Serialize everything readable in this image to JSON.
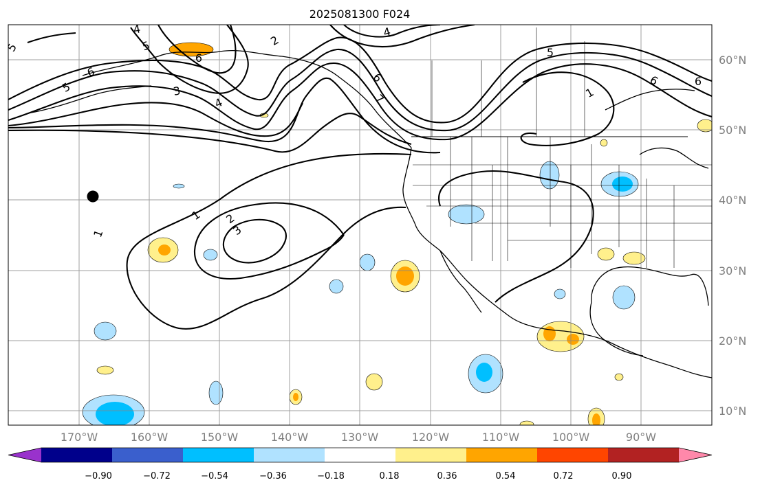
{
  "title": "2025081300 F024",
  "lon_labels": [
    "170°W",
    "160°W",
    "150°W",
    "140°W",
    "130°W",
    "120°W",
    "110°W",
    "100°W",
    "90°W"
  ],
  "lat_labels": [
    "60°N",
    "50°N",
    "40°N",
    "30°N",
    "20°N",
    "10°N"
  ],
  "contour_labels": [
    "5",
    "6",
    "5",
    "4",
    "2",
    "3",
    "4",
    "6",
    "5",
    "6",
    "4",
    "7",
    "5",
    "6",
    "6",
    "1",
    "1",
    "2",
    "3",
    "1",
    "4"
  ],
  "colorbar": {
    "tick_labels": [
      "−0.90",
      "−0.72",
      "−0.54",
      "−0.36",
      "−0.18",
      "0.18",
      "0.36",
      "0.54",
      "0.72",
      "0.90"
    ],
    "colors": [
      "#9932cc",
      "#00008b",
      "#3a5fcd",
      "#00bfff",
      "#b0e2ff",
      "#ffffff",
      "#fff08c",
      "#ffa500",
      "#ff4500",
      "#b22222",
      "#ff88aa"
    ]
  },
  "colors": {
    "positive_light": "#fff08c",
    "positive_mid": "#ffa500",
    "negative_light": "#b0e2ff",
    "negative_mid": "#00bfff",
    "grid": "#888888",
    "contour": "#000000",
    "marker": "#000000"
  }
}
